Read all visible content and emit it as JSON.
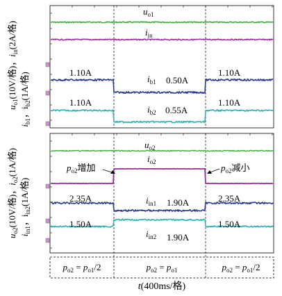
{
  "chart_data": [
    {
      "type": "line",
      "panel": "top",
      "ylabel_left": "u",
      "ylabel_left_sub": "o1",
      "ylabel_left_tail": "(10V/格)，",
      "ylabel_left2": "i",
      "ylabel_left2_sub": "in",
      "ylabel_left2_tail": "(2A/格)",
      "ylabel_right": "i",
      "ylabel_right_sub": "b1",
      "ylabel_right_mid": "，i",
      "ylabel_right_sub2": "b2",
      "ylabel_right_tail": "(1A/格)",
      "series": [
        {
          "name": "u",
          "name_sub": "o1",
          "color": "#3cae3a",
          "values": [
            1,
            1,
            1
          ]
        },
        {
          "name": "i",
          "name_sub": "in",
          "color": "#9b2f9b",
          "values": [
            1,
            1,
            1
          ]
        },
        {
          "name": "i",
          "name_sub": "b1",
          "color": "#2b3a8f",
          "values": [
            1.1,
            0.5,
            1.1
          ]
        },
        {
          "name": "i",
          "name_sub": "b2",
          "color": "#2ab3b3",
          "values": [
            1.1,
            0.55,
            1.1
          ]
        }
      ],
      "annotations": {
        "ib1_left": "1.10A",
        "ib1_mid": "0.50A",
        "ib1_right": "1.10A",
        "ib2_left": "1.10A",
        "ib2_mid": "0.55A",
        "ib2_right": "1.10A"
      }
    },
    {
      "type": "line",
      "panel": "bottom",
      "ylabel_left": "u",
      "ylabel_left_sub": "o2",
      "ylabel_left_tail": "(10V/格)，",
      "ylabel_left2": "i",
      "ylabel_left2_sub": "o2",
      "ylabel_left2_tail": "(1A/格)",
      "ylabel_right": "i",
      "ylabel_right_sub": "in1",
      "ylabel_right_mid": "，i",
      "ylabel_right_sub2": "in2",
      "ylabel_right_tail": "(1A/格)",
      "series": [
        {
          "name": "u",
          "name_sub": "o2",
          "color": "#3cae3a",
          "values": [
            1,
            1,
            1
          ]
        },
        {
          "name": "i",
          "name_sub": "o2",
          "color": "#9b2f9b",
          "values": [
            0,
            1,
            0
          ]
        },
        {
          "name": "i",
          "name_sub": "in1",
          "color": "#2b3a8f",
          "values": [
            2.35,
            1.9,
            2.35
          ]
        },
        {
          "name": "i",
          "name_sub": "in2",
          "color": "#2ab3b3",
          "values": [
            1.5,
            1.9,
            1.5
          ]
        }
      ],
      "annotations": {
        "inc_label": "p",
        "inc_sub": "o2",
        "inc_tail": "增加",
        "dec_label": "p",
        "dec_sub": "o2",
        "dec_tail": "减小",
        "in1_left": "2.35A",
        "in1_mid": "1.90A",
        "in1_right": "2.35A",
        "in2_left": "1.50A",
        "in2_mid": "1.90A",
        "in2_right": "1.50A"
      }
    }
  ],
  "regions": [
    {
      "p": "p",
      "p_sub": "o2",
      "eq": " = ",
      "rhs": "p",
      "rhs_sub": "o1",
      "tail": "/2"
    },
    {
      "p": "p",
      "p_sub": "o2",
      "eq": " = ",
      "rhs": "p",
      "rhs_sub": "o1",
      "tail": ""
    },
    {
      "p": "p",
      "p_sub": "o2",
      "eq": " = ",
      "rhs": "p",
      "rhs_sub": "o1",
      "tail": "/2"
    }
  ],
  "xlabel": "t",
  "xlabel_tail": "(400ms/格)",
  "colors": {
    "green": "#3cae3a",
    "purple": "#9b2f9b",
    "navy": "#2b3a8f",
    "cyan": "#2ab3b3",
    "marker": "#c49ac4"
  }
}
